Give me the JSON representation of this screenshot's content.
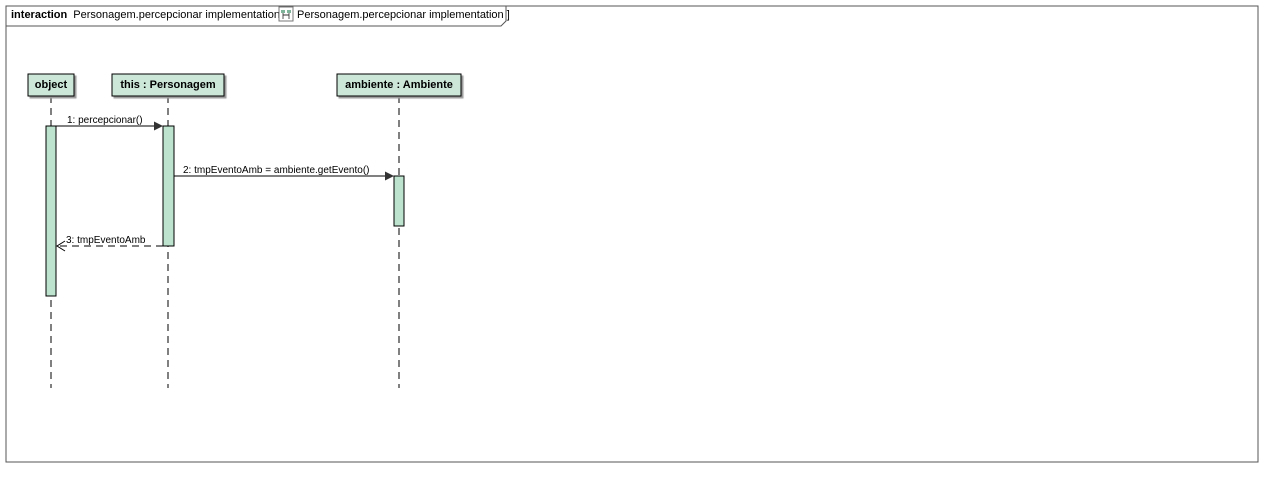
{
  "frame": {
    "keyword": "interaction",
    "name": "Personagem.percepcionar implementation[",
    "ref_icon": "sequence-diagram-icon",
    "ref_name": "Personagem.percepcionar implementation ]"
  },
  "lifelines": [
    {
      "id": "object",
      "label": "object"
    },
    {
      "id": "this",
      "label": "this : Personagem"
    },
    {
      "id": "ambiente",
      "label": "ambiente : Ambiente"
    }
  ],
  "messages": [
    {
      "id": "m1",
      "label": "1: percepcionar()",
      "from": "object",
      "to": "this",
      "kind": "sync"
    },
    {
      "id": "m2",
      "label": "2: tmpEventoAmb = ambiente.getEvento()",
      "from": "this",
      "to": "ambiente",
      "kind": "sync"
    },
    {
      "id": "m3",
      "label": "3: tmpEventoAmb",
      "from": "this",
      "to": "object",
      "kind": "return"
    }
  ],
  "colors": {
    "head_fill": "#cce6d8",
    "activation_fill": "#bde3cf",
    "line": "#000000",
    "frame_border": "#555555"
  }
}
